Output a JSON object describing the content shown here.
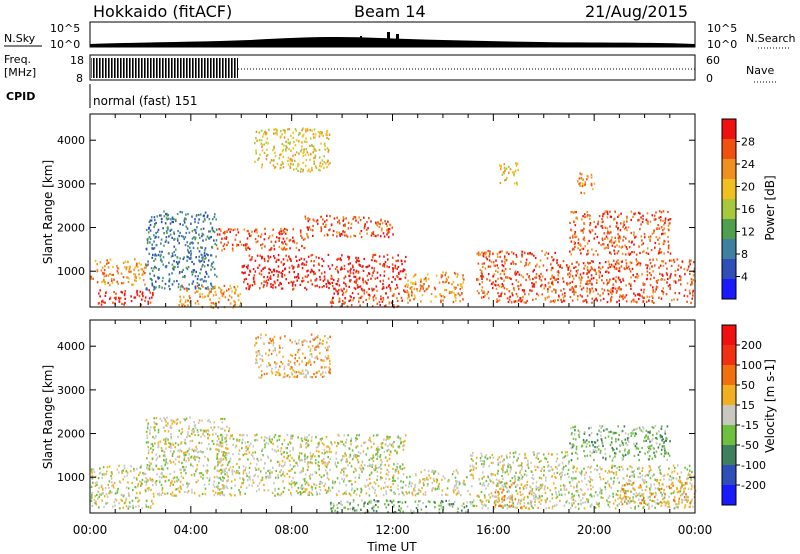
{
  "header": {
    "station": "Hokkaido (fitACF)",
    "beam": "Beam 14",
    "date": "21/Aug/2015"
  },
  "left_labels": {
    "nsky": "N.Sky",
    "freq_line1": "Freq.",
    "freq_line2": "[MHz]",
    "cpid": "CPID"
  },
  "right_labels": {
    "nsearch": "N.Search",
    "nave": "Nave"
  },
  "noise_axis": {
    "top_tick": "10^5",
    "bottom_tick": "10^0"
  },
  "freq_axis": {
    "ticks": [
      "18",
      "8"
    ]
  },
  "nave_axis": {
    "ticks": [
      "60",
      "0"
    ]
  },
  "cpid_text": "normal (fast) 151",
  "colors": {
    "power": [
      "#1a1aff",
      "#2f4fb8",
      "#3f7f9f",
      "#4f9f4f",
      "#a8c83c",
      "#f0c020",
      "#f09020",
      "#f05010",
      "#f01010"
    ],
    "velocity": [
      "#1a1aff",
      "#2f4fb8",
      "#3f7f5f",
      "#6fbf3f",
      "#c8c8c0",
      "#f0b020",
      "#f07010",
      "#f03010",
      "#f01010"
    ],
    "frame": "#000000"
  },
  "chart_data": [
    {
      "type": "heatmap",
      "panel": "power",
      "ylabel": "Slant Range [km]",
      "ylim": [
        180,
        4600
      ],
      "yticks": [
        "1000",
        "2000",
        "3000",
        "4000"
      ],
      "xlim": [
        "00:00",
        "24:00"
      ],
      "colorbar": {
        "label": "Power [dB]",
        "ticks": [
          "4",
          "8",
          "12",
          "16",
          "20",
          "24",
          "28"
        ],
        "range": [
          0,
          32
        ]
      },
      "regions": [
        {
          "t": [
            0.0,
            2.2
          ],
          "r": [
            700,
            1300
          ],
          "level": 6
        },
        {
          "t": [
            0.3,
            2.5
          ],
          "r": [
            250,
            600
          ],
          "level": 8
        },
        {
          "t": [
            2.2,
            5.0
          ],
          "r": [
            600,
            2400
          ],
          "level": 2
        },
        {
          "t": [
            3.5,
            6.0
          ],
          "r": [
            180,
            700
          ],
          "level": 6
        },
        {
          "t": [
            5.0,
            8.5
          ],
          "r": [
            1500,
            2000
          ],
          "level": 7
        },
        {
          "t": [
            6.5,
            9.5
          ],
          "r": [
            3300,
            4300
          ],
          "level": 5
        },
        {
          "t": [
            6.0,
            12.5
          ],
          "r": [
            600,
            1400
          ],
          "level": 8
        },
        {
          "t": [
            8.5,
            12.0
          ],
          "r": [
            1800,
            2300
          ],
          "level": 7
        },
        {
          "t": [
            9.5,
            12.5
          ],
          "r": [
            200,
            600
          ],
          "level": 7
        },
        {
          "t": [
            12.5,
            14.8
          ],
          "r": [
            300,
            1000
          ],
          "level": 6
        },
        {
          "t": [
            15.3,
            18.6
          ],
          "r": [
            300,
            1500
          ],
          "level": 7
        },
        {
          "t": [
            16.2,
            17.0
          ],
          "r": [
            3000,
            3500
          ],
          "level": 5
        },
        {
          "t": [
            18.6,
            24.0
          ],
          "r": [
            300,
            1300
          ],
          "level": 7
        },
        {
          "t": [
            19.0,
            23.0
          ],
          "r": [
            1400,
            2400
          ],
          "level": 7
        },
        {
          "t": [
            19.3,
            20.0
          ],
          "r": [
            2800,
            3300
          ],
          "level": 6
        }
      ]
    },
    {
      "type": "heatmap",
      "panel": "velocity",
      "ylabel": "Slant Range [km]",
      "ylim": [
        180,
        4600
      ],
      "yticks": [
        "1000",
        "2000",
        "3000",
        "4000"
      ],
      "xlabel": "Time UT",
      "xlim": [
        "00:00",
        "24:00"
      ],
      "xticks": [
        "00:00",
        "04:00",
        "08:00",
        "12:00",
        "16:00",
        "20:00",
        "00:00"
      ],
      "colorbar": {
        "label": "Velocity [m s-1]",
        "ticks": [
          "200",
          "100",
          "50",
          "15",
          "-15",
          "-50",
          "-100",
          "-200"
        ]
      },
      "regions": [
        {
          "t": [
            0.0,
            2.5
          ],
          "r": [
            300,
            1300
          ],
          "level": 4
        },
        {
          "t": [
            2.2,
            5.5
          ],
          "r": [
            600,
            2400
          ],
          "level": 4
        },
        {
          "t": [
            5.0,
            12.5
          ],
          "r": [
            600,
            2000
          ],
          "level": 4
        },
        {
          "t": [
            6.5,
            9.5
          ],
          "r": [
            3300,
            4300
          ],
          "level": 5
        },
        {
          "t": [
            9.5,
            15.0
          ],
          "r": [
            200,
            500
          ],
          "level": 3
        },
        {
          "t": [
            12.5,
            15.0
          ],
          "r": [
            600,
            1200
          ],
          "level": 4
        },
        {
          "t": [
            15.0,
            19.0
          ],
          "r": [
            300,
            1600
          ],
          "level": 4
        },
        {
          "t": [
            16.0,
            17.5
          ],
          "r": [
            300,
            900
          ],
          "level": 5
        },
        {
          "t": [
            19.0,
            24.0
          ],
          "r": [
            300,
            1300
          ],
          "level": 4
        },
        {
          "t": [
            19.0,
            23.0
          ],
          "r": [
            1400,
            2200
          ],
          "level": 3
        },
        {
          "t": [
            21.0,
            24.0
          ],
          "r": [
            400,
            900
          ],
          "level": 5
        }
      ]
    }
  ]
}
